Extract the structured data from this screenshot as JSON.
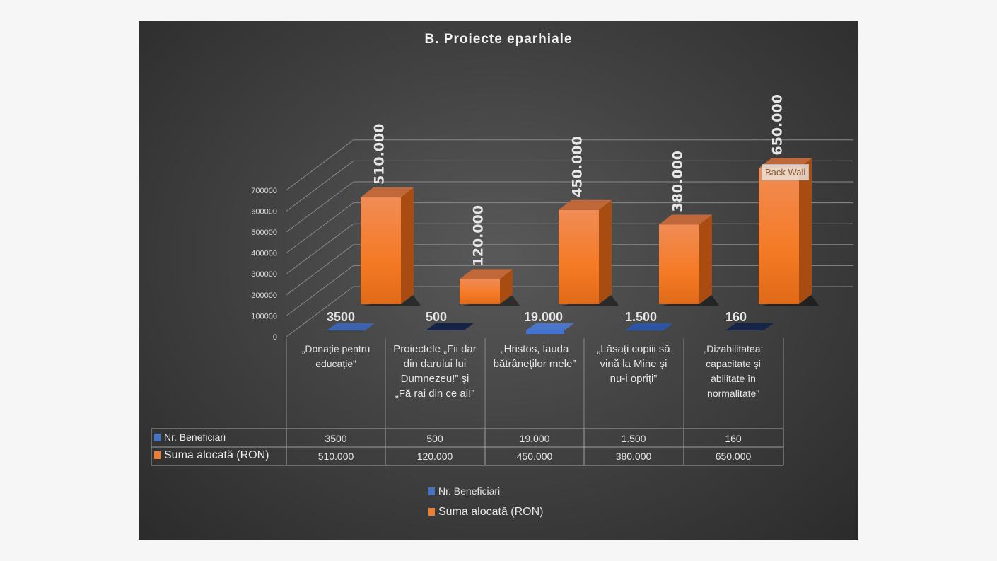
{
  "chart_data": {
    "type": "bar",
    "title": "B. Proiecte eparhiale",
    "categories": [
      "„Donație pentru educație”",
      "Proiectele „Fii dar din darului lui Dumnezeu!” și „Fă rai din ce ai!”",
      "„Hristos, lauda bătrâneților mele”",
      "„Lăsați copiii să vină la Mine și nu-i opriți”",
      "„Dizabilitatea: capacitate și abilitate în normalitate”"
    ],
    "series": [
      {
        "name": "Nr. Beneficiari",
        "values": [
          3500,
          500,
          19000,
          1500,
          160
        ],
        "labels": [
          "3500",
          "500",
          "19.000",
          "1.500",
          "160"
        ],
        "color": "#4472c4"
      },
      {
        "name": "Suma alocată (RON)",
        "values": [
          510000,
          120000,
          450000,
          380000,
          650000
        ],
        "labels": [
          "510.000",
          "120.000",
          "450.000",
          "380.000",
          "650.000"
        ],
        "color": "#ed7d31"
      }
    ],
    "yticks": [
      "0",
      "100000",
      "200000",
      "300000",
      "400000",
      "500000",
      "600000",
      "700000"
    ],
    "ylim": [
      0,
      700000
    ],
    "legend": "bottom",
    "data_table": true
  },
  "tooltip": "Back Wall"
}
